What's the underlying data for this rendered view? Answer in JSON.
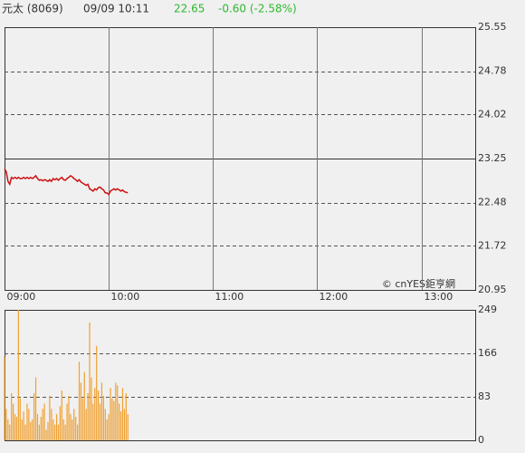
{
  "header": {
    "name": "元太 (8069)",
    "time": "09/09 10:11",
    "price": "22.65",
    "change": "-0.60 (-2.58%)"
  },
  "watermark": "© cnYES鉅亨網",
  "chart_data": [
    {
      "type": "line",
      "x": [
        "09:00",
        "09:01",
        "09:02",
        "09:03",
        "09:04",
        "09:05",
        "09:06",
        "09:07",
        "09:08",
        "09:09",
        "09:10",
        "09:11",
        "09:12",
        "09:13",
        "09:14",
        "09:15",
        "09:16",
        "09:17",
        "09:18",
        "09:19",
        "09:20",
        "09:21",
        "09:22",
        "09:23",
        "09:24",
        "09:25",
        "09:26",
        "09:27",
        "09:28",
        "09:29",
        "09:30",
        "09:31",
        "09:32",
        "09:33",
        "09:34",
        "09:35",
        "09:36",
        "09:37",
        "09:38",
        "09:39",
        "09:40",
        "09:41",
        "09:42",
        "09:43",
        "09:44",
        "09:45",
        "09:46",
        "09:47",
        "09:48",
        "09:49",
        "09:50",
        "09:51",
        "09:52",
        "09:53",
        "09:54",
        "09:55",
        "09:56",
        "09:57",
        "09:58",
        "09:59",
        "10:00",
        "10:01",
        "10:02",
        "10:03",
        "10:04",
        "10:05",
        "10:06",
        "10:07",
        "10:08",
        "10:09",
        "10:10",
        "10:11"
      ],
      "series": [
        {
          "name": "price",
          "color": "#cc1111",
          "values": [
            23.07,
            23.02,
            22.85,
            22.8,
            22.92,
            22.9,
            22.92,
            22.9,
            22.92,
            22.9,
            22.9,
            22.92,
            22.9,
            22.92,
            22.9,
            22.92,
            22.9,
            22.92,
            22.95,
            22.9,
            22.87,
            22.88,
            22.86,
            22.88,
            22.87,
            22.85,
            22.88,
            22.85,
            22.9,
            22.88,
            22.9,
            22.87,
            22.9,
            22.92,
            22.88,
            22.87,
            22.9,
            22.92,
            22.95,
            22.93,
            22.9,
            22.88,
            22.85,
            22.88,
            22.84,
            22.82,
            22.8,
            22.78,
            22.8,
            22.72,
            22.7,
            22.68,
            22.72,
            22.7,
            22.74,
            22.75,
            22.72,
            22.7,
            22.65,
            22.65,
            22.62,
            22.68,
            22.7,
            22.72,
            22.7,
            22.72,
            22.7,
            22.68,
            22.7,
            22.67,
            22.66,
            22.65
          ]
        }
      ],
      "xlim": [
        "09:00",
        "13:31"
      ],
      "xticks": [
        "09:00",
        "10:00",
        "11:00",
        "12:00",
        "13:00"
      ],
      "ylim": [
        20.95,
        25.55
      ],
      "yticks": [
        20.95,
        21.72,
        22.48,
        23.25,
        24.02,
        24.78,
        25.55
      ],
      "grid": true
    },
    {
      "type": "bar",
      "series": [
        {
          "name": "volume",
          "color": "#f0a030",
          "values": [
            160,
            60,
            40,
            30,
            90,
            70,
            50,
            45,
            249,
            80,
            40,
            55,
            30,
            70,
            60,
            35,
            40,
            90,
            120,
            50,
            30,
            45,
            60,
            70,
            20,
            35,
            85,
            60,
            40,
            30,
            50,
            30,
            65,
            95,
            40,
            30,
            70,
            85,
            50,
            40,
            60,
            45,
            30,
            150,
            110,
            80,
            130,
            60,
            90,
            225,
            120,
            70,
            100,
            180,
            95,
            70,
            110,
            85,
            60,
            40,
            50,
            100,
            80,
            75,
            110,
            105,
            70,
            55,
            100,
            60,
            90,
            50
          ]
        }
      ],
      "ylim": [
        0,
        249
      ],
      "yticks": [
        0,
        83,
        166,
        249
      ],
      "grid": true
    }
  ]
}
